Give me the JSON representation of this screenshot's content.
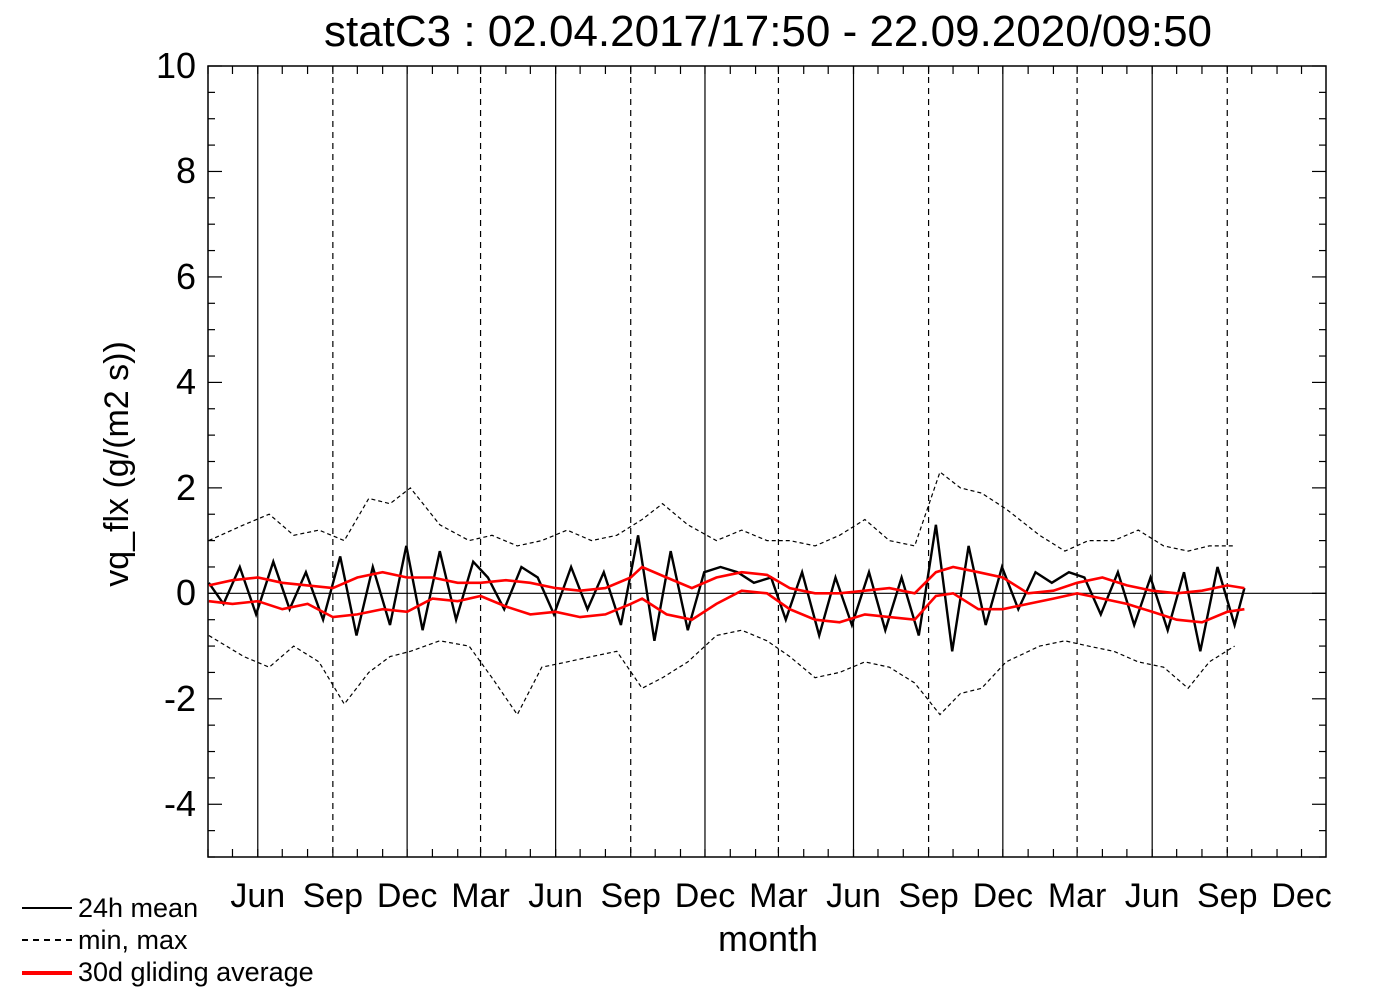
{
  "chart_data": {
    "type": "line",
    "title": "statC3 : 02.04.2017/17:50 - 22.09.2020/09:50",
    "xlabel": "month",
    "ylabel": "vq_flx (g/(m2 s))",
    "x_range": [
      "2017-04-01",
      "2020-12-31"
    ],
    "ylim": [
      -5,
      10
    ],
    "y_ticks": [
      "10",
      "8",
      "6",
      "4",
      "2",
      "0",
      "-2",
      "-4"
    ],
    "x_tick_labels": [
      "Jun",
      "Sep",
      "Dec",
      "Mar",
      "Jun",
      "Sep",
      "Dec",
      "Mar",
      "Jun",
      "Sep",
      "Dec",
      "Mar",
      "Jun",
      "Sep",
      "Dec"
    ],
    "reference_lines": [
      {
        "date": "2017-06-01",
        "style": "solid"
      },
      {
        "date": "2017-09-01",
        "style": "dashed"
      },
      {
        "date": "2017-12-01",
        "style": "solid"
      },
      {
        "date": "2018-03-01",
        "style": "dashed"
      },
      {
        "date": "2018-06-01",
        "style": "solid"
      },
      {
        "date": "2018-09-01",
        "style": "dashed"
      },
      {
        "date": "2018-12-01",
        "style": "solid"
      },
      {
        "date": "2019-03-01",
        "style": "dashed"
      },
      {
        "date": "2019-06-01",
        "style": "solid"
      },
      {
        "date": "2019-09-01",
        "style": "dashed"
      },
      {
        "date": "2019-12-01",
        "style": "solid"
      },
      {
        "date": "2020-03-01",
        "style": "dashed"
      },
      {
        "date": "2020-06-01",
        "style": "solid"
      },
      {
        "date": "2020-09-01",
        "style": "dashed"
      }
    ],
    "zero_line": 0,
    "data_period": [
      "2017-04-02",
      "2020-09-22"
    ],
    "series": [
      {
        "name": "24h mean",
        "style": "solid",
        "color": "#000000",
        "x": [
          "2017-04-02",
          "2017-04-20",
          "2017-05-10",
          "2017-05-30",
          "2017-06-20",
          "2017-07-10",
          "2017-07-30",
          "2017-08-20",
          "2017-09-10",
          "2017-09-30",
          "2017-10-20",
          "2017-11-10",
          "2017-11-30",
          "2017-12-20",
          "2018-01-10",
          "2018-01-30",
          "2018-02-20",
          "2018-03-10",
          "2018-03-30",
          "2018-04-20",
          "2018-05-10",
          "2018-05-30",
          "2018-06-20",
          "2018-07-10",
          "2018-07-30",
          "2018-08-20",
          "2018-09-10",
          "2018-09-30",
          "2018-10-20",
          "2018-11-10",
          "2018-11-30",
          "2018-12-20",
          "2019-01-10",
          "2019-01-30",
          "2019-02-20",
          "2019-03-10",
          "2019-03-30",
          "2019-04-20",
          "2019-05-10",
          "2019-05-30",
          "2019-06-20",
          "2019-07-10",
          "2019-07-30",
          "2019-08-20",
          "2019-09-10",
          "2019-09-30",
          "2019-10-20",
          "2019-11-10",
          "2019-11-30",
          "2019-12-20",
          "2020-01-10",
          "2020-01-30",
          "2020-02-20",
          "2020-03-10",
          "2020-03-30",
          "2020-04-20",
          "2020-05-10",
          "2020-05-30",
          "2020-06-20",
          "2020-07-10",
          "2020-07-30",
          "2020-08-20",
          "2020-09-10",
          "2020-09-22"
        ],
        "values": [
          0.2,
          -0.2,
          0.5,
          -0.4,
          0.6,
          -0.3,
          0.4,
          -0.5,
          0.7,
          -0.8,
          0.5,
          -0.6,
          0.9,
          -0.7,
          0.8,
          -0.5,
          0.6,
          0.3,
          -0.3,
          0.5,
          0.3,
          -0.4,
          0.5,
          -0.3,
          0.4,
          -0.6,
          1.1,
          -0.9,
          0.8,
          -0.7,
          0.4,
          0.5,
          0.4,
          0.2,
          0.3,
          -0.5,
          0.4,
          -0.8,
          0.3,
          -0.6,
          0.4,
          -0.7,
          0.3,
          -0.8,
          1.3,
          -1.1,
          0.9,
          -0.6,
          0.5,
          -0.3,
          0.4,
          0.2,
          0.4,
          0.3,
          -0.4,
          0.4,
          -0.6,
          0.3,
          -0.7,
          0.4,
          -1.1,
          0.5,
          -0.6,
          0.1
        ]
      },
      {
        "name": "min, max",
        "style": "dashed",
        "color": "#000000",
        "upper": {
          "x": [
            "2017-04-02",
            "2017-05-15",
            "2017-06-15",
            "2017-07-15",
            "2017-08-15",
            "2017-09-15",
            "2017-10-15",
            "2017-11-10",
            "2017-12-05",
            "2018-01-10",
            "2018-02-15",
            "2018-03-15",
            "2018-04-15",
            "2018-05-15",
            "2018-06-15",
            "2018-07-15",
            "2018-08-15",
            "2018-09-15",
            "2018-10-10",
            "2018-11-10",
            "2018-12-15",
            "2019-01-15",
            "2019-02-15",
            "2019-03-15",
            "2019-04-15",
            "2019-05-15",
            "2019-06-15",
            "2019-07-15",
            "2019-08-15",
            "2019-09-15",
            "2019-10-10",
            "2019-11-05",
            "2019-12-05",
            "2020-01-15",
            "2020-02-15",
            "2020-03-15",
            "2020-04-15",
            "2020-05-15",
            "2020-06-15",
            "2020-07-15",
            "2020-08-10",
            "2020-09-10"
          ],
          "values": [
            1.0,
            1.3,
            1.5,
            1.1,
            1.2,
            1.0,
            1.8,
            1.7,
            2.0,
            1.3,
            1.0,
            1.1,
            0.9,
            1.0,
            1.2,
            1.0,
            1.1,
            1.4,
            1.7,
            1.3,
            1.0,
            1.2,
            1.0,
            1.0,
            0.9,
            1.1,
            1.4,
            1.0,
            0.9,
            2.3,
            2.0,
            1.9,
            1.6,
            1.1,
            0.8,
            1.0,
            1.0,
            1.2,
            0.9,
            0.8,
            0.9,
            0.9
          ]
        },
        "lower": {
          "x": [
            "2017-04-02",
            "2017-05-15",
            "2017-06-15",
            "2017-07-15",
            "2017-08-15",
            "2017-09-15",
            "2017-10-15",
            "2017-11-10",
            "2017-12-05",
            "2018-01-10",
            "2018-02-15",
            "2018-03-15",
            "2018-04-15",
            "2018-05-15",
            "2018-06-15",
            "2018-07-15",
            "2018-08-15",
            "2018-09-15",
            "2018-10-10",
            "2018-11-10",
            "2018-12-15",
            "2019-01-15",
            "2019-02-15",
            "2019-03-15",
            "2019-04-15",
            "2019-05-15",
            "2019-06-15",
            "2019-07-15",
            "2019-08-15",
            "2019-09-15",
            "2019-10-10",
            "2019-11-05",
            "2019-12-05",
            "2020-01-15",
            "2020-02-15",
            "2020-03-15",
            "2020-04-15",
            "2020-05-15",
            "2020-06-15",
            "2020-07-15",
            "2020-08-10",
            "2020-09-10"
          ],
          "values": [
            -0.8,
            -1.2,
            -1.4,
            -1.0,
            -1.3,
            -2.1,
            -1.5,
            -1.2,
            -1.1,
            -0.9,
            -1.0,
            -1.6,
            -2.3,
            -1.4,
            -1.3,
            -1.2,
            -1.1,
            -1.8,
            -1.6,
            -1.3,
            -0.8,
            -0.7,
            -0.9,
            -1.2,
            -1.6,
            -1.5,
            -1.3,
            -1.4,
            -1.7,
            -2.3,
            -1.9,
            -1.8,
            -1.3,
            -1.0,
            -0.9,
            -1.0,
            -1.1,
            -1.3,
            -1.4,
            -1.8,
            -1.3,
            -1.0
          ]
        }
      },
      {
        "name": "30d gliding average",
        "style": "solid",
        "color": "#ff0000",
        "upper": {
          "x": [
            "2017-04-02",
            "2017-05-01",
            "2017-06-01",
            "2017-07-01",
            "2017-08-01",
            "2017-09-01",
            "2017-10-01",
            "2017-11-01",
            "2017-12-01",
            "2018-01-01",
            "2018-02-01",
            "2018-03-01",
            "2018-04-01",
            "2018-05-01",
            "2018-06-01",
            "2018-07-01",
            "2018-08-01",
            "2018-09-01",
            "2018-09-15",
            "2018-10-15",
            "2018-11-15",
            "2018-12-15",
            "2019-01-15",
            "2019-02-15",
            "2019-03-15",
            "2019-04-15",
            "2019-05-15",
            "2019-06-15",
            "2019-07-15",
            "2019-08-15",
            "2019-09-10",
            "2019-10-01",
            "2019-11-01",
            "2019-12-01",
            "2020-01-01",
            "2020-02-01",
            "2020-03-01",
            "2020-04-01",
            "2020-05-01",
            "2020-06-01",
            "2020-07-01",
            "2020-08-01",
            "2020-09-01",
            "2020-09-22"
          ],
          "values": [
            0.15,
            0.25,
            0.3,
            0.2,
            0.15,
            0.1,
            0.3,
            0.4,
            0.3,
            0.3,
            0.2,
            0.2,
            0.25,
            0.2,
            0.1,
            0.05,
            0.1,
            0.3,
            0.5,
            0.3,
            0.1,
            0.3,
            0.4,
            0.35,
            0.1,
            0.0,
            0.0,
            0.05,
            0.1,
            0.0,
            0.4,
            0.5,
            0.4,
            0.3,
            0.0,
            0.05,
            0.2,
            0.3,
            0.15,
            0.05,
            0.0,
            0.05,
            0.15,
            0.1
          ]
        },
        "lower": {
          "x": [
            "2017-04-02",
            "2017-05-01",
            "2017-06-01",
            "2017-07-01",
            "2017-08-01",
            "2017-09-01",
            "2017-10-01",
            "2017-11-01",
            "2017-12-01",
            "2018-01-01",
            "2018-02-01",
            "2018-03-01",
            "2018-04-01",
            "2018-05-01",
            "2018-06-01",
            "2018-07-01",
            "2018-08-01",
            "2018-09-01",
            "2018-09-15",
            "2018-10-15",
            "2018-11-15",
            "2018-12-15",
            "2019-01-15",
            "2019-02-15",
            "2019-03-15",
            "2019-04-15",
            "2019-05-15",
            "2019-06-15",
            "2019-07-15",
            "2019-08-15",
            "2019-09-10",
            "2019-10-01",
            "2019-11-01",
            "2019-12-01",
            "2020-01-01",
            "2020-02-01",
            "2020-03-01",
            "2020-04-01",
            "2020-05-01",
            "2020-06-01",
            "2020-07-01",
            "2020-08-01",
            "2020-09-01",
            "2020-09-22"
          ],
          "values": [
            -0.15,
            -0.2,
            -0.15,
            -0.3,
            -0.2,
            -0.45,
            -0.4,
            -0.3,
            -0.35,
            -0.1,
            -0.15,
            -0.05,
            -0.25,
            -0.4,
            -0.35,
            -0.45,
            -0.4,
            -0.2,
            -0.1,
            -0.4,
            -0.5,
            -0.2,
            0.05,
            0.0,
            -0.3,
            -0.5,
            -0.55,
            -0.4,
            -0.45,
            -0.5,
            -0.05,
            0.0,
            -0.3,
            -0.3,
            -0.2,
            -0.1,
            0.0,
            -0.1,
            -0.2,
            -0.35,
            -0.5,
            -0.55,
            -0.35,
            -0.3
          ]
        }
      }
    ]
  },
  "legend": {
    "items": [
      {
        "label": "24h mean",
        "color": "#000000",
        "style": "solid"
      },
      {
        "label": "min, max",
        "color": "#000000",
        "style": "dashed"
      },
      {
        "label": "30d gliding average",
        "color": "#ff0000",
        "style": "solid"
      }
    ]
  }
}
